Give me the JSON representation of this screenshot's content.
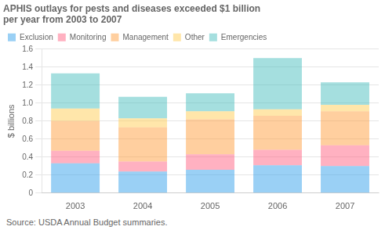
{
  "chart_data": {
    "type": "bar",
    "stacked": true,
    "title": "APHIS outlays for pests and diseases exceeded $1 billion",
    "subtitle": "per year from 2003 to 2007",
    "annotations": [
      "Source:  USDA Annual Budget summaries."
    ],
    "categories": [
      "2003",
      "2004",
      "2005",
      "2006",
      "2007"
    ],
    "series": [
      {
        "name": "Exclusion",
        "values": [
          0.33,
          0.24,
          0.26,
          0.31,
          0.3
        ]
      },
      {
        "name": "Monitoring",
        "values": [
          0.14,
          0.11,
          0.17,
          0.17,
          0.23
        ]
      },
      {
        "name": "Management",
        "values": [
          0.33,
          0.38,
          0.39,
          0.38,
          0.38
        ]
      },
      {
        "name": "Other",
        "values": [
          0.14,
          0.1,
          0.09,
          0.07,
          0.07
        ]
      },
      {
        "name": "Emergencies",
        "values": [
          0.39,
          0.24,
          0.2,
          0.57,
          0.25
        ]
      }
    ],
    "ylabel": "$ billions",
    "ylim": [
      0,
      1.6
    ],
    "yticks": [
      0,
      0.2,
      0.4,
      0.6,
      0.8,
      {
        "value": 1,
        "label": "1.0"
      },
      1.2,
      1.4,
      1.6
    ],
    "grid": true,
    "legend": "top"
  }
}
